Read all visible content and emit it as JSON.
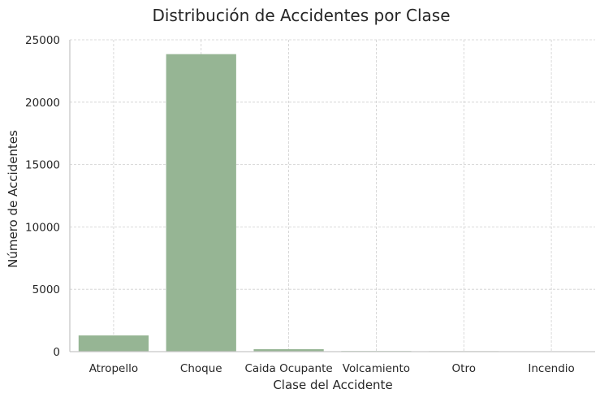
{
  "chart_data": {
    "type": "bar",
    "title": "Distribución de Accidentes por Clase",
    "xlabel": "Clase del Accidente",
    "ylabel": "Número de Accidentes",
    "categories": [
      "Atropello",
      "Choque",
      "Caida Ocupante",
      "Volcamiento",
      "Otro",
      "Incendio"
    ],
    "values": [
      1300,
      23850,
      200,
      50,
      40,
      10
    ],
    "ylim": [
      0,
      25000
    ],
    "yticks": [
      0,
      5000,
      10000,
      15000,
      20000,
      25000
    ],
    "grid": true,
    "bar_color": "#96b594"
  }
}
